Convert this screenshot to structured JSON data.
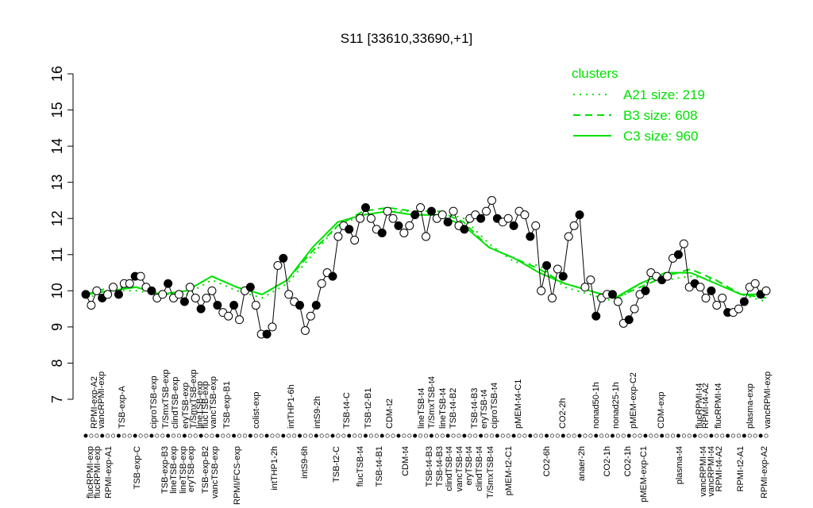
{
  "chart_data": {
    "type": "line",
    "title": "S11 [33610,33690,+1]",
    "ylim": [
      7,
      16
    ],
    "yticks": [
      7,
      8,
      9,
      10,
      11,
      12,
      13,
      14,
      15,
      16
    ],
    "legend_title": "clusters",
    "legend_position": "top-right",
    "points": {
      "color": "#000000",
      "values": [
        9.9,
        9.6,
        10.0,
        9.8,
        9.9,
        10.1,
        9.9,
        10.2,
        10.2,
        10.4,
        10.4,
        10.1,
        10.0,
        9.8,
        9.9,
        10.2,
        9.8,
        9.9,
        9.7,
        10.1,
        9.8,
        9.5,
        9.8,
        10.0,
        9.6,
        9.4,
        9.3,
        9.6,
        9.2,
        10.0,
        10.1,
        9.6,
        8.8,
        8.8,
        9.0,
        10.7,
        10.9,
        9.9,
        9.7,
        9.6,
        8.9,
        9.3,
        9.6,
        10.2,
        10.5,
        10.4,
        11.5,
        11.8,
        11.7,
        11.4,
        12.0,
        12.3,
        12.0,
        11.7,
        11.6,
        12.2,
        12.0,
        11.8,
        11.6,
        11.8,
        12.1,
        12.3,
        11.5,
        12.2,
        12.0,
        12.1,
        11.9,
        12.2,
        11.8,
        11.7,
        12.0,
        12.1,
        12.0,
        12.2,
        12.5,
        12.0,
        11.9,
        12.0,
        11.8,
        12.2,
        12.1,
        11.5,
        11.8,
        10.0,
        10.7,
        9.8,
        10.6,
        10.4,
        11.5,
        11.8,
        12.1,
        10.1,
        10.3,
        9.3,
        9.8,
        9.9,
        9.9,
        9.7,
        9.1,
        9.2,
        9.5,
        9.9,
        10.0,
        10.5,
        10.4,
        10.3,
        10.4,
        10.9,
        11.0,
        11.3,
        10.1,
        10.2,
        10.1,
        9.8,
        10.0,
        9.6,
        9.8,
        9.4,
        9.4,
        9.5,
        9.7,
        10.1,
        10.2,
        9.9,
        10.0
      ]
    },
    "series": [
      {
        "name": "A21 size: 219",
        "color": "#00e000",
        "dash": "2,6",
        "values": [
          9.8,
          10.0,
          10.0,
          9.9,
          9.9,
          10.3,
          10.0,
          9.8,
          10.2,
          11.0,
          11.8,
          12.1,
          12.2,
          12.2,
          12.2,
          12.0,
          11.3,
          10.8,
          10.7,
          10.1,
          9.9,
          9.7,
          10.2,
          10.3,
          10.4,
          10.3,
          9.9,
          9.7
        ]
      },
      {
        "name": "B3 size: 608",
        "color": "#00e000",
        "dash": "9,6",
        "values": [
          9.9,
          10.1,
          10.1,
          9.9,
          10.0,
          10.4,
          10.1,
          9.9,
          10.3,
          11.1,
          11.8,
          12.2,
          12.3,
          12.2,
          12.2,
          11.9,
          11.2,
          10.9,
          10.6,
          10.2,
          10.0,
          9.8,
          10.1,
          10.4,
          10.6,
          10.3,
          9.9,
          9.8
        ]
      },
      {
        "name": "C3 size: 960",
        "color": "#00e000",
        "dash": "",
        "values": [
          9.9,
          10.0,
          10.1,
          9.9,
          10.0,
          10.4,
          10.1,
          9.9,
          10.3,
          11.2,
          11.9,
          12.1,
          12.2,
          12.1,
          12.1,
          11.8,
          11.2,
          10.9,
          10.5,
          10.2,
          10.0,
          9.8,
          10.2,
          10.5,
          10.5,
          10.2,
          9.9,
          9.9
        ]
      }
    ],
    "top_labels": [
      "RPMI-exp-A2",
      "vancRPMI-exp",
      "TSB-exp-A",
      "ciproTSB-exp",
      "T/SmxTSB-exp",
      "clindTSB-exp",
      "eryTSB-exp",
      "T/SmxTSB-exp",
      "lineTSB-exp",
      "flucTSB-exp",
      "vancTSB-exp",
      "TSB-exp-B1",
      "colist-exp",
      "intTHP1-6h",
      "intS9-2h",
      "TSB-t4-C",
      "TSB-t2-B1",
      "CDM-t2",
      "lineTSB-t4",
      "T/SmxTSB-t4",
      "lineTSB-t4",
      "TSB-t4-B2",
      "TSB-t4-B3",
      "eryTSB-t4",
      "ciproTSB-t4",
      "pMEM-t4-C1",
      "CO2-2h",
      "nonad50-1h",
      "nonad25-1h",
      "pMEM-exp-C2",
      "CDM-exp",
      "flucRPMI-t4",
      "RPMI-t4-A2",
      "flucRPMI-t4",
      "plasma-exp",
      "vancRPMI-exp"
    ],
    "bottom_labels": [
      "flucRPMI-exp",
      "flucRPMI-exp",
      "RPMI-exp-A1",
      "TSB-exp-C",
      "TSB-exp-B3",
      "lineTSB-exp",
      "lineTSB-exp",
      "eryTSB-exp",
      "TSB-exp-B2",
      "vancTSB-exp",
      "RPMI/FCS-exp",
      "intTHP1-2h",
      "intS9-6h",
      "TSB-t2-C",
      "flucTSB-t4",
      "TSB-t4-B1",
      "CDM-t4",
      "TSB-t4-B3",
      "TSB-t4-B3",
      "clindTSB-t4",
      "vancTSB-t4",
      "eryTSB-t4",
      "clindTSB-t4",
      "T/SmxTSB-t4",
      "pMEM-t2-C1",
      "CO2-6h",
      "anaer-2h",
      "CO2-1h",
      "CO2-1h",
      "pMEM-exp-C1",
      "plasma-t4",
      "vancRPMI-t4",
      "vancRPMI-t4",
      "RPMI-t4-A2",
      "RPMI-t2-A1",
      "RPMI-exp-A2"
    ]
  }
}
